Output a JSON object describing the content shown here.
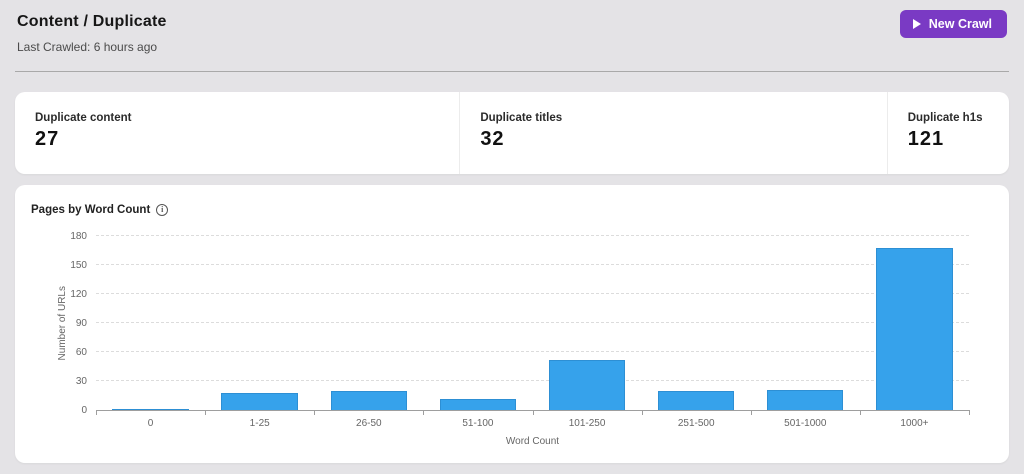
{
  "header": {
    "title": "Content / Duplicate",
    "subtitle": "Last Crawled: 6 hours ago",
    "new_crawl_button": {
      "label": "New Crawl",
      "icon": "play-icon",
      "color": "#7a3ac4"
    }
  },
  "stats": [
    {
      "label": "Duplicate content",
      "value": "27"
    },
    {
      "label": "Duplicate titles",
      "value": "32"
    },
    {
      "label": "Duplicate h1s",
      "value": "121"
    }
  ],
  "chart": {
    "info_icon": "info-icon",
    "info_glyph": "i"
  },
  "chart_data": {
    "type": "bar",
    "title": "Pages by Word Count",
    "categories": [
      "0",
      "1-25",
      "26-50",
      "51-100",
      "101-250",
      "251-500",
      "501-1000",
      "1000+"
    ],
    "values": [
      1,
      18,
      20,
      11,
      52,
      20,
      21,
      168
    ],
    "xlabel": "Word Count",
    "ylabel": "Number of URLs",
    "ylim": [
      0,
      180
    ],
    "ytick_step": 30,
    "yticks": [
      0,
      30,
      60,
      90,
      120,
      150,
      180
    ],
    "bar_color": "#36a2eb",
    "grid": "horizontal-dashed",
    "legend": "none"
  }
}
